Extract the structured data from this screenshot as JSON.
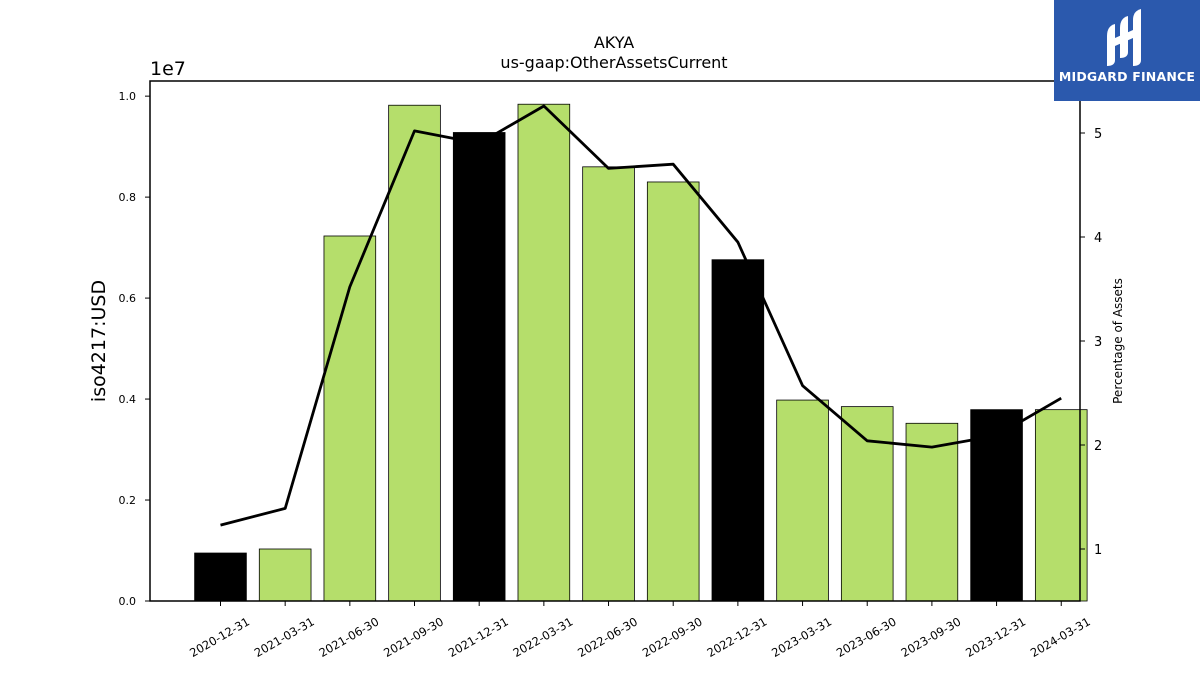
{
  "chart_data": {
    "type": "bar",
    "title": "AKYA",
    "subtitle": "us-gaap:OtherAssetsCurrent",
    "ylabel": "iso4217:USD",
    "y2label": "Percentage of Assets",
    "y_multiplier_label": "1e7",
    "ylim": [
      0,
      1.03
    ],
    "yticks": [
      "0.0",
      "0.2",
      "0.4",
      "0.6",
      "0.8",
      "1.0"
    ],
    "y2lim": [
      0.5,
      5.5
    ],
    "y2ticks": [
      "1",
      "2",
      "3",
      "4",
      "5"
    ],
    "categories": [
      "2020-12-31",
      "2021-03-31",
      "2021-06-30",
      "2021-09-30",
      "2021-12-31",
      "2022-03-31",
      "2022-06-30",
      "2022-09-30",
      "2022-12-31",
      "2023-03-31",
      "2023-06-30",
      "2023-09-30",
      "2023-12-31",
      "2024-03-31"
    ],
    "series": [
      {
        "type": "bar",
        "values": [
          0.095,
          0.103,
          0.723,
          0.982,
          0.928,
          0.984,
          0.86,
          0.83,
          0.676,
          0.398,
          0.385,
          0.352,
          0.379,
          0.379
        ],
        "colors": [
          "#000000",
          "#b5de6b",
          "#b5de6b",
          "#b5de6b",
          "#000000",
          "#b5de6b",
          "#b5de6b",
          "#b5de6b",
          "#000000",
          "#b5de6b",
          "#b5de6b",
          "#b5de6b",
          "#000000",
          "#b5de6b"
        ]
      },
      {
        "type": "line",
        "axis": "right",
        "color": "#000000",
        "values": [
          1.23,
          1.39,
          3.52,
          5.02,
          4.9,
          5.26,
          4.66,
          4.7,
          3.95,
          2.57,
          2.04,
          1.98,
          2.09,
          2.45
        ]
      }
    ],
    "grid": false
  },
  "logo": {
    "text": "MIDGARD FINANCE",
    "background": "#2b59ad"
  }
}
